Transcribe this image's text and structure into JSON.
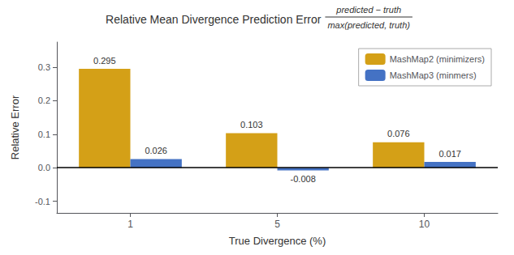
{
  "chart_data": {
    "type": "bar",
    "title": "Relative Mean Divergence Prediction Error",
    "annotations": [
      "predicted − truth",
      "max(predicted, truth)"
    ],
    "xlabel": "True Divergence (%)",
    "ylabel": "Relative Error",
    "categories": [
      "1",
      "5",
      "10"
    ],
    "series": [
      {
        "name": "MashMap2 (minimizers)",
        "color": "#D4A017",
        "values": [
          0.295,
          0.103,
          0.076
        ]
      },
      {
        "name": "MashMap3 (minmers)",
        "color": "#4472C4",
        "values": [
          0.026,
          -0.008,
          0.017
        ]
      }
    ],
    "ylim": [
      -0.135,
      0.375
    ],
    "yticks": [
      -0.1,
      {
        "value": 0.0,
        "label": "0.0"
      },
      0.1,
      0.2,
      0.3
    ],
    "grid": false,
    "legend": "upper right",
    "data_labels": true
  }
}
